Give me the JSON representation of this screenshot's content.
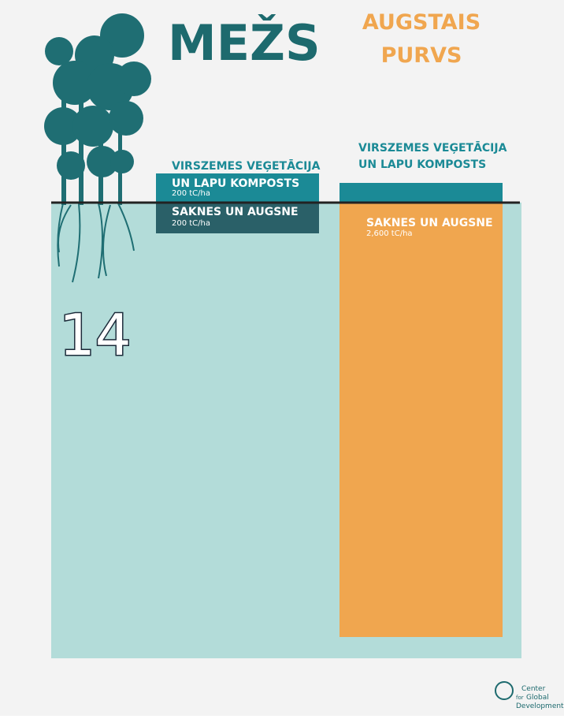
{
  "header": {
    "forest_title": "MEŽS",
    "bog_title": [
      "AUGSTAIS",
      "PURVS"
    ]
  },
  "forest": {
    "above_label": [
      "VIRSZEMES VEĢETĀCIJA",
      "UN LAPU KOMPOSTS"
    ],
    "above_value": "200 tC/ha",
    "below_label": "SAKNES UN AUGSNE",
    "below_value": "200 tC/ha"
  },
  "bog": {
    "above_label": [
      "VIRSZEMES VEĢETĀCIJA",
      "UN LAPU KOMPOSTS"
    ],
    "below_label": "SAKNES UN AUGSNE",
    "below_value": "2,600 tC/ha"
  },
  "badge": "14",
  "logo": [
    "Center",
    "for",
    "Global",
    "Development"
  ]
}
